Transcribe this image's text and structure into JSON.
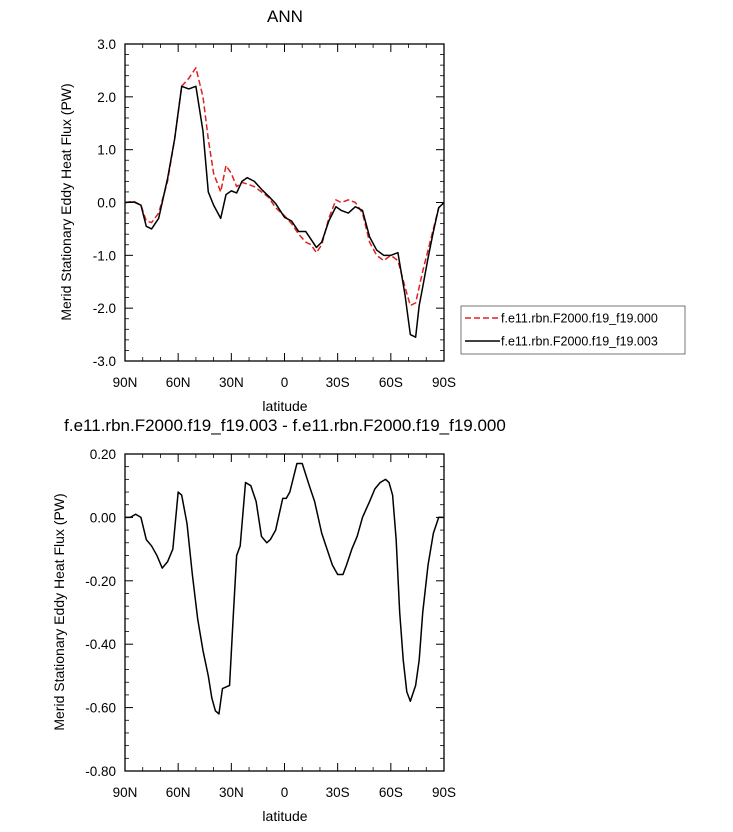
{
  "chart_data": [
    {
      "type": "line",
      "title": "ANN",
      "xlabel": "latitude",
      "ylabel": "Merid Stationary Eddy Heat Flux (PW)",
      "xlim": [
        90,
        -90
      ],
      "ylim": [
        -3.0,
        3.0
      ],
      "xticks": [
        90,
        60,
        30,
        0,
        -30,
        -60,
        -90
      ],
      "xtick_labels": [
        "90N",
        "60N",
        "30N",
        "0",
        "30S",
        "60S",
        "90S"
      ],
      "yticks": [
        3.0,
        2.0,
        1.0,
        0.0,
        -1.0,
        -2.0,
        -3.0
      ],
      "ytick_labels": [
        "3.0",
        "2.0",
        "1.0",
        "0.0",
        "-1.0",
        "-2.0",
        "-3.0"
      ],
      "legend": "right",
      "series": [
        {
          "name": "f.e11.rbn.F2000.f19_f19.000",
          "color": "#e02020",
          "dash": "dashed",
          "x": [
            90,
            85,
            81,
            78,
            75,
            71,
            66,
            62,
            58,
            54,
            50,
            46,
            43,
            40,
            36,
            33,
            30,
            27,
            24,
            21,
            17,
            13,
            9,
            5,
            0,
            -4,
            -8,
            -12,
            -15,
            -18,
            -21,
            -25,
            -29,
            -32,
            -36,
            -40,
            -44,
            -48,
            -52,
            -56,
            -60,
            -64,
            -68,
            -71,
            -74,
            -76,
            -78,
            -81,
            -84,
            -87,
            -90
          ],
          "y": [
            0.0,
            0.02,
            -0.05,
            -0.35,
            -0.38,
            -0.2,
            0.4,
            1.2,
            2.2,
            2.35,
            2.55,
            2.0,
            1.2,
            0.55,
            0.2,
            0.7,
            0.55,
            0.3,
            0.38,
            0.35,
            0.3,
            0.2,
            0.1,
            -0.1,
            -0.25,
            -0.4,
            -0.6,
            -0.75,
            -0.8,
            -0.95,
            -0.8,
            -0.3,
            0.05,
            0.0,
            0.05,
            0.0,
            -0.2,
            -0.75,
            -1.0,
            -1.1,
            -1.0,
            -1.1,
            -1.6,
            -1.95,
            -1.9,
            -1.6,
            -1.3,
            -0.9,
            -0.5,
            -0.1,
            0.0
          ]
        },
        {
          "name": "f.e11.rbn.F2000.f19_f19.003",
          "color": "#000000",
          "dash": "solid",
          "x": [
            90,
            85,
            81,
            78,
            75,
            71,
            66,
            62,
            58,
            54,
            50,
            46,
            43,
            40,
            36,
            33,
            30,
            27,
            24,
            21,
            17,
            13,
            9,
            5,
            0,
            -4,
            -8,
            -12,
            -15,
            -18,
            -21,
            -25,
            -29,
            -32,
            -36,
            -40,
            -44,
            -48,
            -52,
            -56,
            -60,
            -64,
            -68,
            -71,
            -74,
            -76,
            -78,
            -81,
            -84,
            -87,
            -90
          ],
          "y": [
            0.0,
            0.01,
            -0.05,
            -0.45,
            -0.5,
            -0.3,
            0.45,
            1.2,
            2.2,
            2.15,
            2.2,
            1.35,
            0.2,
            -0.05,
            -0.3,
            0.15,
            0.22,
            0.18,
            0.4,
            0.47,
            0.4,
            0.25,
            0.12,
            -0.02,
            -0.28,
            -0.35,
            -0.55,
            -0.55,
            -0.7,
            -0.85,
            -0.75,
            -0.35,
            -0.08,
            -0.15,
            -0.2,
            -0.08,
            -0.15,
            -0.65,
            -0.9,
            -1.0,
            -1.0,
            -0.95,
            -1.75,
            -2.5,
            -2.55,
            -1.95,
            -1.6,
            -1.05,
            -0.55,
            -0.1,
            0.0
          ]
        }
      ]
    },
    {
      "type": "line",
      "title": "f.e11.rbn.F2000.f19_f19.003 - f.e11.rbn.F2000.f19_f19.000",
      "xlabel": "latitude",
      "ylabel": "Merid Stationary Eddy Heat Flux (PW)",
      "xlim": [
        90,
        -90
      ],
      "ylim": [
        -0.8,
        0.2
      ],
      "xticks": [
        90,
        60,
        30,
        0,
        -30,
        -60,
        -90
      ],
      "xtick_labels": [
        "90N",
        "60N",
        "30N",
        "0",
        "30S",
        "60S",
        "90S"
      ],
      "yticks": [
        0.2,
        0.0,
        -0.2,
        -0.4,
        -0.6,
        -0.8
      ],
      "ytick_labels": [
        "0.20",
        "0.00",
        "-0.20",
        "-0.40",
        "-0.60",
        "-0.80"
      ],
      "series": [
        {
          "color": "#000000",
          "dash": "solid",
          "x": [
            90,
            87,
            84,
            81,
            78,
            75,
            72,
            69,
            66,
            63,
            60,
            58,
            55,
            52,
            49,
            46,
            43,
            41,
            39,
            37,
            35,
            31,
            29,
            27,
            25,
            22,
            19,
            16,
            13,
            10,
            8,
            5,
            1,
            -1,
            -3,
            -7,
            -10,
            -14,
            -17,
            -21,
            -24,
            -27,
            -30,
            -33,
            -35,
            -38,
            -41,
            -44,
            -48,
            -51,
            -54,
            -57,
            -59,
            -61,
            -63,
            -65,
            -67,
            -69,
            -71,
            -74,
            -76,
            -78,
            -81,
            -84,
            -87,
            -90
          ],
          "y": [
            0.0,
            0.0,
            0.01,
            0.0,
            -0.07,
            -0.09,
            -0.12,
            -0.16,
            -0.14,
            -0.1,
            0.08,
            0.07,
            -0.02,
            -0.18,
            -0.32,
            -0.42,
            -0.5,
            -0.57,
            -0.61,
            -0.62,
            -0.54,
            -0.53,
            -0.32,
            -0.12,
            -0.09,
            0.11,
            0.1,
            0.05,
            -0.06,
            -0.08,
            -0.07,
            -0.04,
            0.06,
            0.06,
            0.08,
            0.17,
            0.17,
            0.1,
            0.05,
            -0.05,
            -0.1,
            -0.15,
            -0.18,
            -0.18,
            -0.15,
            -0.1,
            -0.06,
            0.0,
            0.05,
            0.09,
            0.11,
            0.12,
            0.11,
            0.07,
            -0.07,
            -0.3,
            -0.45,
            -0.55,
            -0.58,
            -0.53,
            -0.45,
            -0.3,
            -0.15,
            -0.05,
            0.0,
            0.0
          ]
        }
      ]
    }
  ]
}
